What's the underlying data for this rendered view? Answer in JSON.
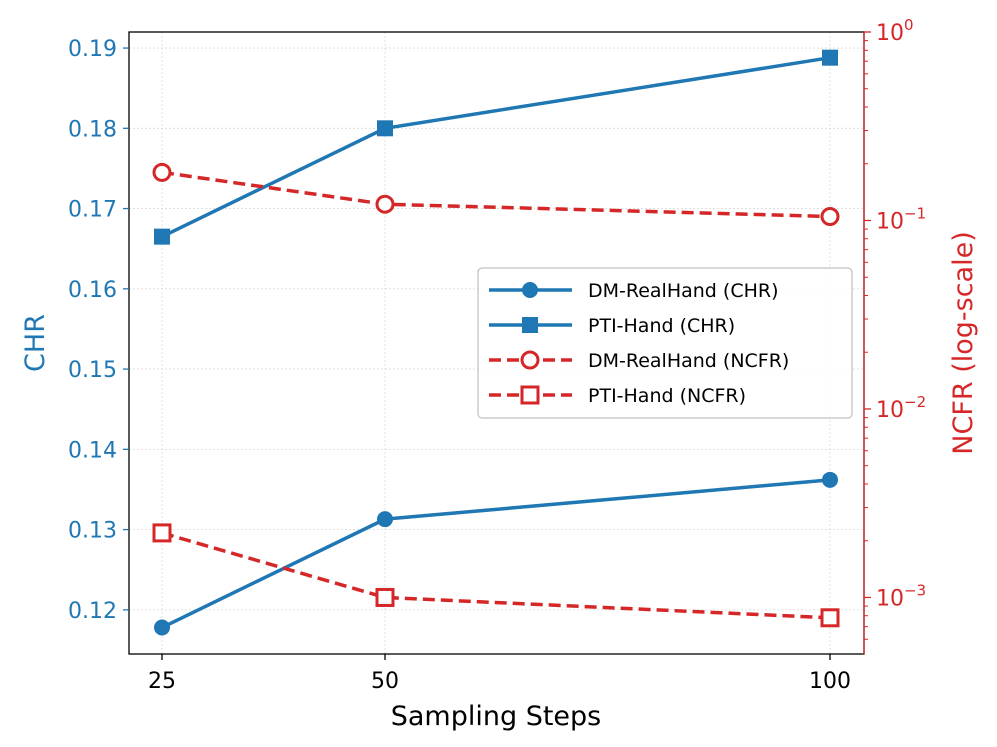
{
  "chart_data": {
    "type": "line",
    "xlabel": "Sampling Steps",
    "x_categories": [
      "25",
      "50",
      "100"
    ],
    "ylabel_left": "CHR",
    "ylabel_right": "NCFR (log-scale)",
    "ylim_left": [
      0.1145,
      0.192
    ],
    "ylim_right_log10": [
      -3.3,
      0
    ],
    "yticks_left": [
      "0.12",
      "0.13",
      "0.14",
      "0.15",
      "0.16",
      "0.17",
      "0.18",
      "0.19"
    ],
    "yticks_left_values": [
      0.12,
      0.13,
      0.14,
      0.15,
      0.16,
      0.17,
      0.18,
      0.19
    ],
    "yticks_right": [
      {
        "base": "10",
        "exp": "0",
        "value": 1
      },
      {
        "base": "10",
        "exp": "−1",
        "value": 0.1
      },
      {
        "base": "10",
        "exp": "−2",
        "value": 0.01
      },
      {
        "base": "10",
        "exp": "−3",
        "value": 0.001
      }
    ],
    "grid": true,
    "legend_position": "center-right",
    "colors": {
      "chr": "#1f77b4",
      "ncfr": "#d62728"
    },
    "series": [
      {
        "name": "DM-RealHand (CHR)",
        "axis": "left",
        "style": "solid",
        "marker": "circle-filled",
        "values": [
          0.1178,
          0.1313,
          0.1362
        ]
      },
      {
        "name": "PTI-Hand (CHR)",
        "axis": "left",
        "style": "solid",
        "marker": "square-filled",
        "values": [
          0.1665,
          0.18,
          0.1888
        ]
      },
      {
        "name": "DM-RealHand (NCFR)",
        "axis": "right",
        "style": "dashed",
        "marker": "circle-open",
        "values": [
          0.18,
          0.122,
          0.105
        ]
      },
      {
        "name": "PTI-Hand (NCFR)",
        "axis": "right",
        "style": "dashed",
        "marker": "square-open",
        "values": [
          0.0022,
          0.001,
          0.00078
        ]
      }
    ]
  }
}
